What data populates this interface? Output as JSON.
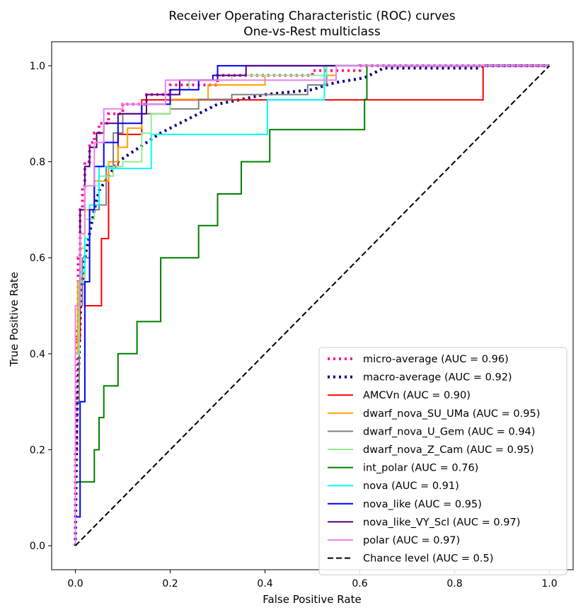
{
  "chart_data": {
    "type": "line",
    "title": "Receiver Operating Characteristic (ROC) curves",
    "subtitle": "One-vs-Rest multiclass",
    "xlabel": "False Positive Rate",
    "ylabel": "True Positive Rate",
    "xlim": [
      -0.05,
      1.05
    ],
    "ylim": [
      -0.05,
      1.05
    ],
    "xticks": [
      0.0,
      0.2,
      0.4,
      0.6,
      0.8,
      1.0
    ],
    "xtick_labels": [
      "0.0",
      "0.2",
      "0.4",
      "0.6",
      "0.8",
      "1.0"
    ],
    "yticks": [
      0.0,
      0.2,
      0.4,
      0.6,
      0.8,
      1.0
    ],
    "ytick_labels": [
      "0.0",
      "0.2",
      "0.4",
      "0.6",
      "0.8",
      "1.0"
    ],
    "grid": false,
    "legend_position": "lower-right",
    "series": [
      {
        "name": "micro-average",
        "label": "micro-average (AUC = 0.96)",
        "color": "#ff1493",
        "style": "dotted",
        "width": 4,
        "x": [
          0,
          0,
          0.003,
          0.003,
          0.006,
          0.006,
          0.01,
          0.01,
          0.015,
          0.015,
          0.02,
          0.02,
          0.03,
          0.03,
          0.04,
          0.04,
          0.05,
          0.05,
          0.07,
          0.07,
          0.1,
          0.1,
          0.15,
          0.15,
          0.2,
          0.2,
          0.3,
          0.3,
          0.5,
          0.5,
          0.6,
          0.6,
          1.0
        ],
        "y": [
          0,
          0.2,
          0.2,
          0.45,
          0.45,
          0.6,
          0.6,
          0.7,
          0.7,
          0.75,
          0.75,
          0.8,
          0.8,
          0.84,
          0.84,
          0.86,
          0.86,
          0.88,
          0.88,
          0.9,
          0.9,
          0.92,
          0.92,
          0.94,
          0.94,
          0.96,
          0.96,
          0.98,
          0.98,
          0.99,
          0.99,
          1.0,
          1.0
        ]
      },
      {
        "name": "macro-average",
        "label": "macro-average (AUC = 0.92)",
        "color": "#000080",
        "style": "dotted",
        "width": 4,
        "x": [
          0,
          0.003,
          0.008,
          0.012,
          0.02,
          0.03,
          0.04,
          0.05,
          0.07,
          0.09,
          0.12,
          0.15,
          0.18,
          0.22,
          0.26,
          0.3,
          0.35,
          0.4,
          0.45,
          0.5,
          0.53,
          0.55,
          0.58,
          0.61,
          0.62,
          0.64,
          0.65,
          0.85,
          0.86,
          1.0
        ],
        "y": [
          0,
          0.25,
          0.4,
          0.52,
          0.6,
          0.65,
          0.7,
          0.74,
          0.77,
          0.8,
          0.82,
          0.84,
          0.86,
          0.88,
          0.9,
          0.92,
          0.93,
          0.94,
          0.945,
          0.95,
          0.96,
          0.965,
          0.97,
          0.975,
          0.98,
          0.99,
          0.995,
          0.995,
          1.0,
          1.0
        ]
      },
      {
        "name": "AMCVn",
        "label": "AMCVn (AUC = 0.90)",
        "color": "#ff0000",
        "style": "solid",
        "width": 2,
        "x": [
          0,
          0,
          0.01,
          0.01,
          0.015,
          0.015,
          0.02,
          0.02,
          0.055,
          0.055,
          0.07,
          0.07,
          0.09,
          0.09,
          0.14,
          0.14,
          0.86,
          0.86,
          1.0
        ],
        "y": [
          0,
          0.43,
          0.43,
          0.5,
          0.5,
          0.57,
          0.57,
          0.5,
          0.5,
          0.64,
          0.64,
          0.79,
          0.79,
          0.857,
          0.857,
          0.929,
          0.929,
          1.0,
          1.0
        ]
      },
      {
        "name": "dwarf_nova_SU_UMa",
        "label": "dwarf_nova_SU_UMa (AUC = 0.95)",
        "color": "#ffa500",
        "style": "solid",
        "width": 2,
        "x": [
          0,
          0,
          0.005,
          0.005,
          0.01,
          0.01,
          0.02,
          0.02,
          0.04,
          0.04,
          0.07,
          0.07,
          0.09,
          0.09,
          0.11,
          0.11,
          0.14,
          0.14,
          0.2,
          0.2,
          0.28,
          0.28,
          0.4,
          0.4,
          0.55,
          0.55,
          1.0
        ],
        "y": [
          0,
          0.4,
          0.4,
          0.55,
          0.55,
          0.62,
          0.62,
          0.7,
          0.7,
          0.76,
          0.76,
          0.8,
          0.8,
          0.83,
          0.83,
          0.87,
          0.87,
          0.9,
          0.9,
          0.93,
          0.93,
          0.96,
          0.96,
          0.98,
          0.98,
          1.0,
          1.0
        ]
      },
      {
        "name": "dwarf_nova_U_Gem",
        "label": "dwarf_nova_U_Gem (AUC = 0.94)",
        "color": "#808080",
        "style": "solid",
        "width": 2,
        "x": [
          0,
          0,
          0.008,
          0.008,
          0.015,
          0.015,
          0.03,
          0.03,
          0.05,
          0.05,
          0.065,
          0.065,
          0.08,
          0.08,
          0.1,
          0.1,
          0.2,
          0.2,
          0.26,
          0.26,
          0.33,
          0.33,
          0.49,
          0.49,
          0.53,
          0.53,
          1.0
        ],
        "y": [
          0,
          0.3,
          0.3,
          0.5,
          0.5,
          0.6,
          0.6,
          0.7,
          0.7,
          0.71,
          0.71,
          0.79,
          0.79,
          0.86,
          0.86,
          0.9,
          0.9,
          0.91,
          0.91,
          0.93,
          0.93,
          0.94,
          0.94,
          0.96,
          0.96,
          1.0,
          1.0
        ]
      },
      {
        "name": "dwarf_nova_Z_Cam",
        "label": "dwarf_nova_Z_Cam (AUC = 0.95)",
        "color": "#90ee90",
        "style": "solid",
        "width": 2,
        "x": [
          0,
          0,
          0.008,
          0.008,
          0.02,
          0.02,
          0.04,
          0.04,
          0.05,
          0.05,
          0.08,
          0.08,
          0.1,
          0.1,
          0.14,
          0.14,
          0.16,
          0.16,
          0.2,
          0.2,
          0.24,
          0.24,
          0.33,
          0.33,
          0.53,
          0.53,
          1.0
        ],
        "y": [
          0,
          0.4,
          0.4,
          0.55,
          0.55,
          0.68,
          0.68,
          0.75,
          0.75,
          0.77,
          0.77,
          0.79,
          0.79,
          0.8,
          0.8,
          0.86,
          0.86,
          0.9,
          0.9,
          0.95,
          0.95,
          0.97,
          0.97,
          0.98,
          0.98,
          1.0,
          1.0
        ]
      },
      {
        "name": "int_polar",
        "label": "int_polar (AUC = 0.76)",
        "color": "#008000",
        "style": "solid",
        "width": 2,
        "x": [
          0,
          0,
          0.04,
          0.04,
          0.05,
          0.05,
          0.06,
          0.06,
          0.09,
          0.09,
          0.13,
          0.13,
          0.18,
          0.18,
          0.26,
          0.26,
          0.3,
          0.3,
          0.35,
          0.35,
          0.41,
          0.41,
          0.61,
          0.61,
          0.615,
          0.615,
          0.63,
          0.63,
          1.0
        ],
        "y": [
          0,
          0.133,
          0.133,
          0.2,
          0.2,
          0.267,
          0.267,
          0.333,
          0.333,
          0.4,
          0.4,
          0.467,
          0.467,
          0.6,
          0.6,
          0.667,
          0.667,
          0.733,
          0.733,
          0.8,
          0.8,
          0.867,
          0.867,
          0.93,
          0.93,
          1.0,
          1.0,
          1.0,
          1.0
        ]
      },
      {
        "name": "nova",
        "label": "nova (AUC = 0.91)",
        "color": "#00ffff",
        "style": "solid",
        "width": 2,
        "x": [
          0,
          0,
          0.01,
          0.01,
          0.02,
          0.02,
          0.03,
          0.03,
          0.05,
          0.05,
          0.07,
          0.07,
          0.16,
          0.16,
          0.405,
          0.405,
          0.525,
          0.525,
          1.0
        ],
        "y": [
          0,
          0.5,
          0.5,
          0.57,
          0.57,
          0.64,
          0.64,
          0.71,
          0.71,
          0.79,
          0.79,
          0.786,
          0.786,
          0.857,
          0.857,
          0.929,
          0.929,
          1.0,
          1.0
        ]
      },
      {
        "name": "nova_like",
        "label": "nova_like (AUC = 0.95)",
        "color": "#0000ff",
        "style": "solid",
        "width": 2,
        "x": [
          0,
          0,
          0.01,
          0.01,
          0.02,
          0.02,
          0.03,
          0.03,
          0.04,
          0.04,
          0.06,
          0.06,
          0.09,
          0.09,
          0.14,
          0.14,
          0.2,
          0.2,
          0.26,
          0.26,
          0.29,
          0.29,
          0.3,
          0.3,
          1.0
        ],
        "y": [
          0,
          0.06,
          0.06,
          0.3,
          0.3,
          0.55,
          0.55,
          0.7,
          0.7,
          0.79,
          0.79,
          0.84,
          0.84,
          0.88,
          0.88,
          0.92,
          0.92,
          0.95,
          0.95,
          0.97,
          0.97,
          0.98,
          0.98,
          1.0,
          1.0
        ]
      },
      {
        "name": "nova_like_VY_Scl",
        "label": "nova_like_VY_Scl (AUC = 0.97)",
        "color": "#4b0082",
        "style": "solid",
        "width": 2,
        "x": [
          0,
          0,
          0.01,
          0.01,
          0.02,
          0.02,
          0.03,
          0.03,
          0.045,
          0.045,
          0.06,
          0.06,
          0.09,
          0.09,
          0.15,
          0.15,
          0.22,
          0.22,
          0.3,
          0.3,
          0.36,
          0.36,
          1.0
        ],
        "y": [
          0,
          0.5,
          0.5,
          0.7,
          0.7,
          0.79,
          0.79,
          0.83,
          0.83,
          0.86,
          0.86,
          0.88,
          0.88,
          0.9,
          0.9,
          0.94,
          0.94,
          0.97,
          0.97,
          0.98,
          0.98,
          1.0,
          1.0
        ]
      },
      {
        "name": "polar",
        "label": "polar (AUC = 0.97)",
        "color": "#ee82ee",
        "style": "solid",
        "width": 2,
        "x": [
          0,
          0,
          0.01,
          0.01,
          0.02,
          0.02,
          0.04,
          0.04,
          0.06,
          0.06,
          0.1,
          0.1,
          0.19,
          0.19,
          0.55,
          0.55,
          1.0
        ],
        "y": [
          0,
          0.5,
          0.5,
          0.65,
          0.65,
          0.75,
          0.75,
          0.84,
          0.84,
          0.91,
          0.91,
          0.92,
          0.92,
          0.97,
          0.97,
          1.0,
          1.0
        ]
      },
      {
        "name": "chance",
        "label": "Chance level (AUC = 0.5)",
        "color": "#000000",
        "style": "dashed",
        "width": 2,
        "x": [
          0,
          1
        ],
        "y": [
          0,
          1
        ]
      }
    ]
  }
}
